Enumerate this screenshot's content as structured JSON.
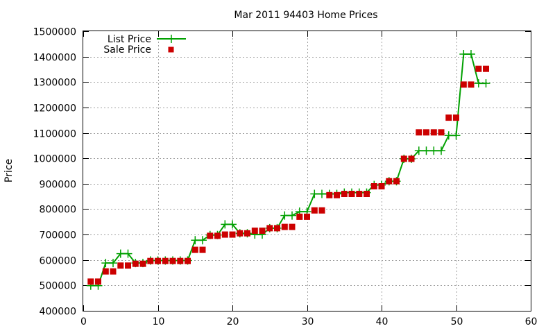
{
  "chart_data": {
    "type": "line",
    "title": "Mar 2011 94403 Home Prices",
    "xlabel": "",
    "ylabel": "Price",
    "xlim": [
      0,
      60
    ],
    "ylim": [
      400000,
      1500000
    ],
    "x_ticks": [
      "0",
      "10",
      "20",
      "30",
      "40",
      "50",
      "60"
    ],
    "y_ticks": [
      "400000",
      "500000",
      "600000",
      "700000",
      "800000",
      "900000",
      "1000000",
      "1100000",
      "1200000",
      "1300000",
      "1400000",
      "1500000"
    ],
    "grid": true,
    "legend_position": "top-left",
    "series": [
      {
        "name": "List Price",
        "style": "line+cross",
        "color": "#00a000",
        "x": [
          1,
          2,
          3,
          4,
          5,
          6,
          7,
          8,
          9,
          10,
          11,
          12,
          13,
          14,
          15,
          16,
          17,
          18,
          19,
          20,
          21,
          22,
          23,
          24,
          25,
          26,
          27,
          28,
          29,
          30,
          31,
          32,
          33,
          34,
          35,
          36,
          37,
          38,
          39,
          40,
          41,
          42,
          43,
          44,
          45,
          46,
          47,
          48,
          49,
          50,
          51,
          52,
          53,
          54
        ],
        "values": [
          499000,
          499000,
          588000,
          588000,
          625000,
          625000,
          588000,
          588000,
          598000,
          598000,
          598000,
          598000,
          598000,
          598000,
          678000,
          678000,
          698000,
          698000,
          740000,
          740000,
          705000,
          705000,
          700000,
          700000,
          725000,
          725000,
          775000,
          775000,
          790000,
          790000,
          860000,
          860000,
          860000,
          860000,
          865000,
          865000,
          865000,
          865000,
          895000,
          895000,
          910000,
          910000,
          998000,
          998000,
          1030000,
          1030000,
          1030000,
          1030000,
          1090000,
          1090000,
          1410000,
          1410000,
          1295000,
          1295000
        ]
      },
      {
        "name": "Sale Price",
        "style": "square-points",
        "color": "#cc0000",
        "x": [
          1,
          2,
          3,
          4,
          5,
          6,
          7,
          8,
          9,
          10,
          11,
          12,
          13,
          14,
          15,
          16,
          17,
          18,
          19,
          20,
          21,
          22,
          23,
          24,
          25,
          26,
          27,
          28,
          29,
          30,
          31,
          32,
          33,
          34,
          35,
          36,
          37,
          38,
          39,
          40,
          41,
          42,
          43,
          44,
          45,
          46,
          47,
          48,
          49,
          50,
          51,
          52,
          53,
          54
        ],
        "values": [
          515000,
          515000,
          555000,
          555000,
          578000,
          578000,
          585000,
          585000,
          596000,
          596000,
          596000,
          596000,
          596000,
          596000,
          640000,
          640000,
          695000,
          695000,
          700000,
          700000,
          705000,
          705000,
          715000,
          715000,
          725000,
          725000,
          730000,
          730000,
          770000,
          770000,
          795000,
          795000,
          855000,
          855000,
          860000,
          860000,
          860000,
          860000,
          890000,
          890000,
          910000,
          910000,
          998000,
          998000,
          1102000,
          1102000,
          1102000,
          1102000,
          1160000,
          1160000,
          1290000,
          1290000,
          1352000,
          1352000
        ]
      }
    ]
  }
}
